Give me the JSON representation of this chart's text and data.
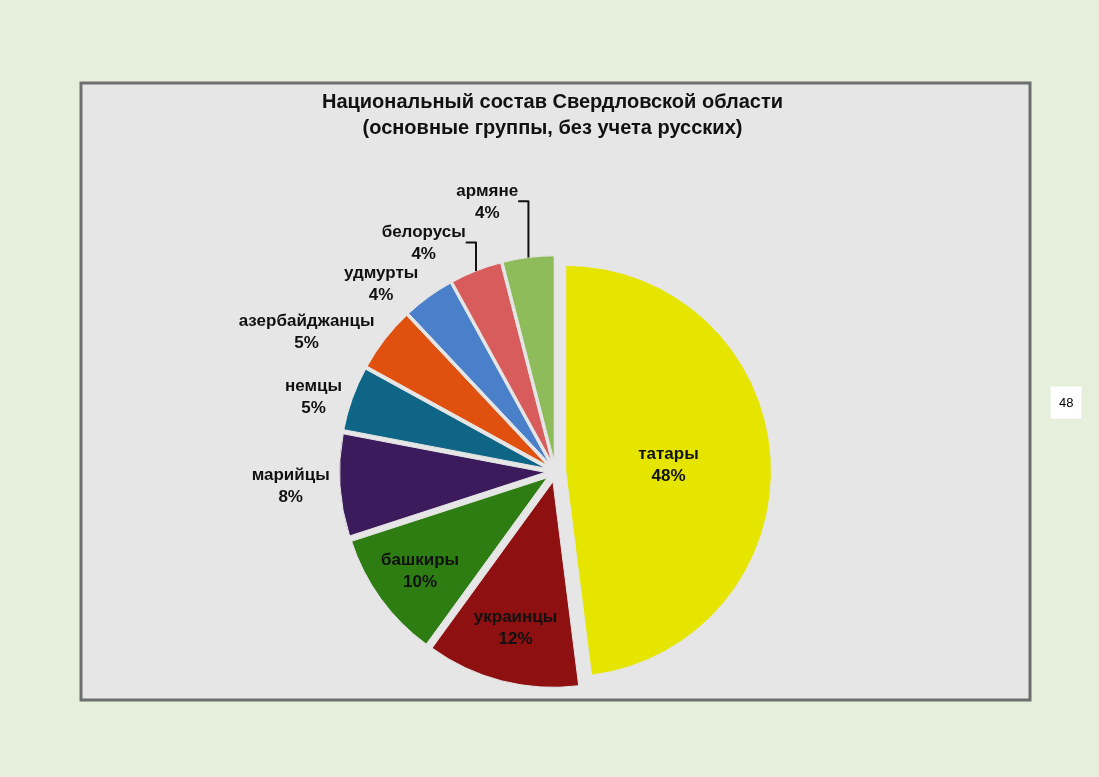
{
  "chart_data": {
    "type": "pie",
    "title": "Национальный состав Свердловской области\n(основные группы, без учета русских)",
    "categories": [
      "татары",
      "украинцы",
      "башкиры",
      "марийцы",
      "немцы",
      "азербайджанцы",
      "удмурты",
      "белорусы",
      "армяне"
    ],
    "values": [
      48,
      12,
      10,
      8,
      5,
      5,
      4,
      4,
      4
    ],
    "value_labels": [
      "48%",
      "12%",
      "10%",
      "8%",
      "5%",
      "5%",
      "4%",
      "4%",
      "4%"
    ],
    "colors": [
      "#e5e500",
      "#8e1010",
      "#2e7d12",
      "#3b1b5c",
      "#0e6586",
      "#e0500f",
      "#4a7fc9",
      "#d85c5c",
      "#8fbc5a"
    ],
    "legend": false,
    "annotations": [
      "48"
    ]
  }
}
